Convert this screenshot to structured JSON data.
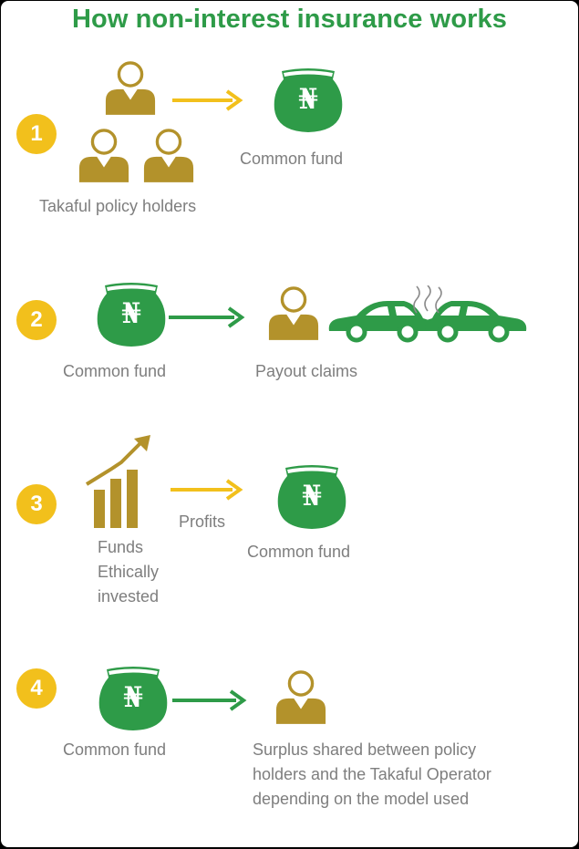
{
  "title": "How non-interest insurance works",
  "colors": {
    "green": "#2e9b48",
    "gold": "#b3922b",
    "yellow": "#f2c01c",
    "text": "#7e7e7e"
  },
  "icons": {
    "fund": "naira-pot-icon",
    "person": "person-icon",
    "arrow": "right-arrow-icon",
    "cars": "car-collision-icon",
    "chart": "growth-chart-icon"
  },
  "currency_symbol": "₦",
  "steps": [
    {
      "number": "1",
      "source_label": "Takaful policy holders",
      "target_label": "Common fund"
    },
    {
      "number": "2",
      "source_label": "Common fund",
      "target_label": "Payout claims"
    },
    {
      "number": "3",
      "source_label_lines": [
        "Funds",
        "Ethically",
        "invested"
      ],
      "arrow_label": "Profits",
      "target_label": "Common fund"
    },
    {
      "number": "4",
      "source_label": "Common fund",
      "target_label_lines": [
        "Surplus shared between policy",
        "holders and the Takaful Operator",
        "depending on the model used"
      ]
    }
  ]
}
